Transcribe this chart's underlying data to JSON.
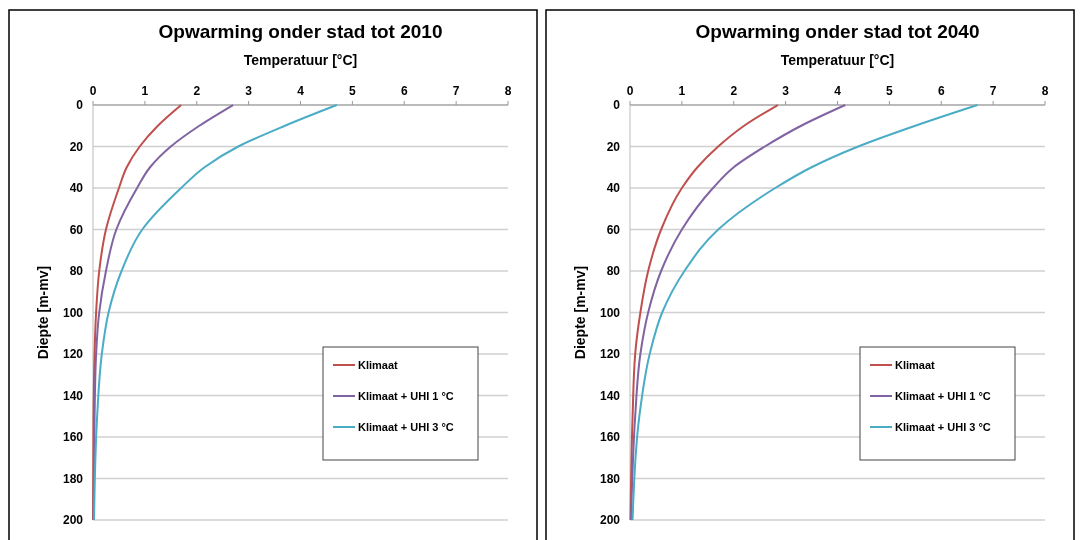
{
  "chart_data": [
    {
      "type": "line",
      "title": "Opwarming onder stad tot 2010",
      "xlabel": "Temperatuur [°C]",
      "ylabel": "Diepte [m-mv]",
      "xlim": [
        0,
        8
      ],
      "xticks": [
        0,
        1,
        2,
        3,
        4,
        5,
        6,
        7,
        8
      ],
      "ylim": [
        200,
        0
      ],
      "yticks": [
        0,
        20,
        40,
        60,
        80,
        100,
        120,
        140,
        160,
        180,
        200
      ],
      "grid": "y",
      "legend": "bottom right",
      "line_style": "solid",
      "marker": "none",
      "series": [
        {
          "name": "Klimaat",
          "color": "#c0504d",
          "x": [
            1.7,
            1.25,
            0.9,
            0.65,
            0.5,
            0.25,
            0.12,
            0.06,
            0.03,
            0.01,
            0
          ],
          "values": [
            0,
            10,
            20,
            30,
            40,
            60,
            80,
            100,
            120,
            150,
            200
          ]
        },
        {
          "name": "Klimaat + UHI 1 °C",
          "color": "#8064a2",
          "x": [
            2.7,
            2.05,
            1.5,
            1.1,
            0.85,
            0.45,
            0.25,
            0.12,
            0.06,
            0.03,
            0.01
          ],
          "values": [
            0,
            10,
            20,
            30,
            40,
            60,
            80,
            100,
            120,
            150,
            200
          ]
        },
        {
          "name": "Klimaat + UHI 3 °C",
          "color": "#4bacc6",
          "x": [
            4.7,
            3.7,
            2.8,
            2.15,
            1.7,
            0.95,
            0.55,
            0.3,
            0.17,
            0.08,
            0.02
          ],
          "values": [
            0,
            10,
            20,
            30,
            40,
            60,
            80,
            100,
            120,
            150,
            200
          ]
        }
      ]
    },
    {
      "type": "line",
      "title": "Opwarming onder stad tot 2040",
      "xlabel": "Temperatuur [°C]",
      "ylabel": "Diepte [m-mv]",
      "xlim": [
        0,
        8
      ],
      "xticks": [
        0,
        1,
        2,
        3,
        4,
        5,
        6,
        7,
        8
      ],
      "ylim": [
        200,
        0
      ],
      "yticks": [
        0,
        20,
        40,
        60,
        80,
        100,
        120,
        140,
        160,
        180,
        200
      ],
      "grid": "y",
      "legend": "bottom right",
      "line_style": "solid",
      "marker": "none",
      "series": [
        {
          "name": "Klimaat",
          "color": "#c0504d",
          "x": [
            2.85,
            2.2,
            1.7,
            1.3,
            1.0,
            0.6,
            0.35,
            0.2,
            0.1,
            0.05,
            0.01
          ],
          "values": [
            0,
            10,
            20,
            30,
            40,
            60,
            80,
            100,
            120,
            150,
            200
          ]
        },
        {
          "name": "Klimaat + UHI 1 °C",
          "color": "#8064a2",
          "x": [
            4.15,
            3.3,
            2.6,
            2.0,
            1.6,
            1.0,
            0.6,
            0.35,
            0.2,
            0.1,
            0.02
          ],
          "values": [
            0,
            10,
            20,
            30,
            40,
            60,
            80,
            100,
            120,
            150,
            200
          ]
        },
        {
          "name": "Klimaat + UHI 3 °C",
          "color": "#4bacc6",
          "x": [
            6.7,
            5.5,
            4.4,
            3.5,
            2.8,
            1.7,
            1.05,
            0.62,
            0.38,
            0.18,
            0.05
          ],
          "values": [
            0,
            10,
            20,
            30,
            40,
            60,
            80,
            100,
            120,
            150,
            200
          ]
        }
      ]
    }
  ]
}
